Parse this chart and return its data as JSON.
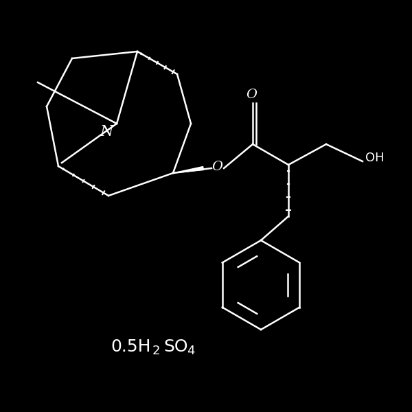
{
  "background_color": "#000000",
  "line_color": "#ffffff",
  "line_width": 1.8,
  "fig_width": 6.0,
  "fig_height": 6.0,
  "dpi": 100,
  "formula_text": "0.5H",
  "formula_sub": "2",
  "formula_end": "SO",
  "formula_sub2": "4"
}
